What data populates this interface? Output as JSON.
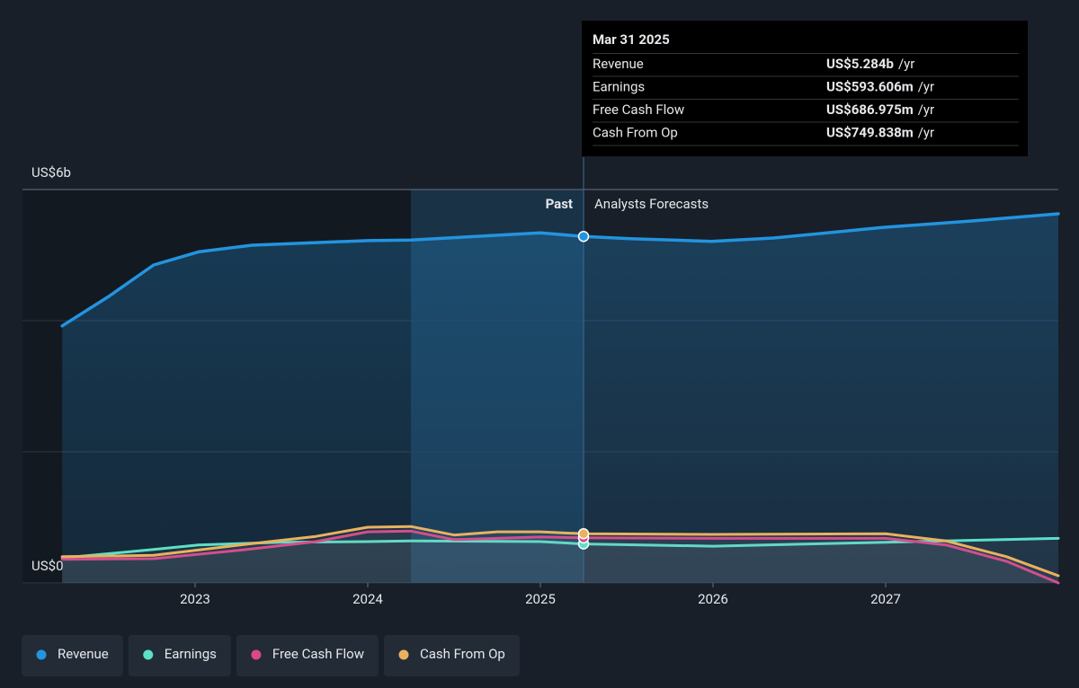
{
  "chart_data": {
    "type": "line",
    "xlim": [
      2022.0,
      2028.0
    ],
    "xticks": [
      2023,
      2024,
      2025,
      2026,
      2027
    ],
    "ylim": [
      0,
      6
    ],
    "yticks": [
      {
        "value": 0,
        "label": "US$0"
      },
      {
        "value": 6,
        "label": "US$6b"
      }
    ],
    "ygrid": [
      0,
      2,
      4,
      6
    ],
    "grid": true,
    "divider_x": 2025.25,
    "highlight_x": [
      2024.25,
      2025.25
    ],
    "past_label": "Past",
    "forecast_label": "Analysts Forecasts",
    "series": [
      {
        "name": "Revenue",
        "color": "#2394df",
        "x": [
          2022.23,
          2022.5,
          2022.76,
          2023.02,
          2023.33,
          2023.7,
          2024.0,
          2024.25,
          2024.53,
          2025.0,
          2025.25,
          2025.52,
          2025.99,
          2026.35,
          2026.98,
          2027.5,
          2028.0
        ],
        "values": [
          3.92,
          4.37,
          4.85,
          5.05,
          5.15,
          5.19,
          5.22,
          5.23,
          5.27,
          5.34,
          5.284,
          5.25,
          5.21,
          5.26,
          5.42,
          5.52,
          5.63
        ]
      },
      {
        "name": "Earnings",
        "color": "#5ce0c8",
        "x": [
          2022.23,
          2022.76,
          2023.02,
          2023.5,
          2024.0,
          2024.25,
          2025.0,
          2025.25,
          2026.0,
          2026.5,
          2027.0,
          2028.0
        ],
        "values": [
          0.38,
          0.51,
          0.58,
          0.62,
          0.63,
          0.64,
          0.63,
          0.594,
          0.56,
          0.59,
          0.62,
          0.68
        ]
      },
      {
        "name": "Free Cash Flow",
        "color": "#d9488a",
        "x": [
          2022.23,
          2022.76,
          2023.3,
          2023.7,
          2024.0,
          2024.25,
          2024.5,
          2025.0,
          2025.25,
          2026.0,
          2027.0,
          2027.35,
          2027.7,
          2028.0
        ],
        "values": [
          0.36,
          0.37,
          0.51,
          0.63,
          0.78,
          0.79,
          0.66,
          0.7,
          0.687,
          0.68,
          0.68,
          0.58,
          0.33,
          0.0
        ]
      },
      {
        "name": "Cash From Op",
        "color": "#e9b25e",
        "x": [
          2022.23,
          2022.76,
          2023.3,
          2023.7,
          2024.0,
          2024.25,
          2024.5,
          2024.75,
          2025.0,
          2025.25,
          2026.0,
          2027.0,
          2027.35,
          2027.7,
          2028.0
        ],
        "values": [
          0.4,
          0.42,
          0.59,
          0.71,
          0.85,
          0.86,
          0.73,
          0.78,
          0.78,
          0.75,
          0.74,
          0.75,
          0.64,
          0.4,
          0.11
        ]
      }
    ],
    "tooltip": {
      "date": "Mar 31 2025",
      "value_labels": [
        "US$5.284b",
        "US$593.606m",
        "US$686.975m",
        "US$749.838m"
      ],
      "unit": "/yr"
    }
  }
}
